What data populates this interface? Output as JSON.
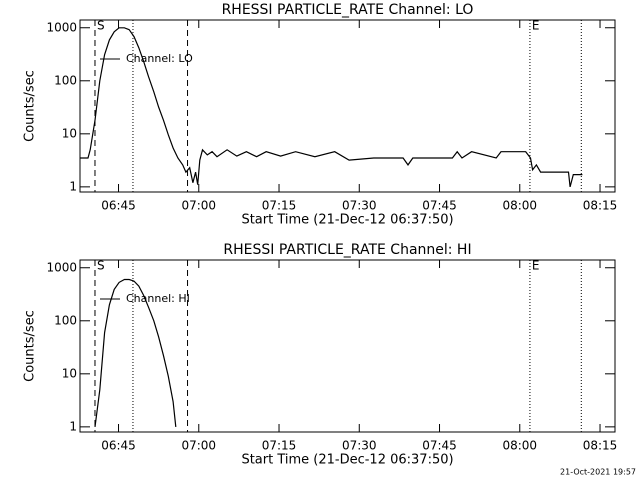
{
  "chart_data": [
    {
      "type": "line",
      "title": "RHESSI PARTICLE_RATE Channel: LO",
      "xlabel": "Start Time (21-Dec-12 06:37:50)",
      "ylabel": "Counts/sec",
      "log_y": true,
      "legend": "upper left",
      "x": [
        397.8,
        399.3,
        399.7,
        400.6,
        401.5,
        402.4,
        403.3,
        404.2,
        405.1,
        406.1,
        407.0,
        407.9,
        408.8,
        409.7,
        410.6,
        411.6,
        412.5,
        413.4,
        414.3,
        415.2,
        416.1,
        417.0,
        417.6,
        418.3,
        418.9,
        419.4,
        419.8,
        420.2,
        420.7,
        421.6,
        422.5,
        423.4,
        425.3,
        427.1,
        428.9,
        430.8,
        432.6,
        435.3,
        438.1,
        441.7,
        445.4,
        448.1,
        452.7,
        458.2,
        459.1,
        460.0,
        467.4,
        468.3,
        469.2,
        471.0,
        475.6,
        476.5,
        481.1,
        482.0,
        482.4,
        483.1,
        483.9,
        485.7,
        488.5,
        489.1,
        489.4,
        490.0,
        491.7
      ],
      "series": [
        {
          "name": "Channel: LO",
          "color": "#000000",
          "values": [
            3.5,
            3.5,
            5,
            18,
            100,
            310,
            590,
            840,
            1000,
            1000,
            920,
            680,
            420,
            230,
            120,
            62,
            32,
            18,
            9.6,
            5.4,
            3.5,
            2.6,
            1.9,
            2.3,
            1.2,
            1.9,
            1.1,
            3.2,
            5,
            4,
            4.6,
            3.7,
            5,
            3.8,
            4.6,
            3.7,
            4.6,
            3.8,
            4.6,
            3.7,
            4.6,
            3.2,
            3.5,
            3.5,
            2.6,
            3.5,
            3.5,
            4.6,
            3.5,
            4.6,
            3.5,
            4.6,
            4.6,
            3.5,
            2.1,
            2.6,
            1.9,
            1.9,
            1.9,
            1.9,
            1,
            1.7,
            1.7
          ]
        }
      ],
      "xlim": [
        397.8,
        497.8
      ],
      "ylim": [
        0.8,
        1400
      ],
      "xticks": [
        {
          "value": 405,
          "label": "06:45"
        },
        {
          "value": 420,
          "label": "07:00"
        },
        {
          "value": 435,
          "label": "07:15"
        },
        {
          "value": 450,
          "label": "07:30"
        },
        {
          "value": 465,
          "label": "07:45"
        },
        {
          "value": 480,
          "label": "08:00"
        },
        {
          "value": 495,
          "label": "08:15"
        }
      ],
      "yticks": [
        1,
        10,
        100,
        1000
      ],
      "vlines": [
        {
          "x": 400.6,
          "style": "dashed",
          "label": "S"
        },
        {
          "x": 407.7,
          "style": "dotted"
        },
        {
          "x": 417.9,
          "style": "dashed"
        },
        {
          "x": 481.9,
          "style": "dotted",
          "label": "E"
        },
        {
          "x": 491.5,
          "style": "dotted"
        }
      ]
    },
    {
      "type": "line",
      "title": "RHESSI PARTICLE_RATE Channel: HI",
      "xlabel": "Start Time (21-Dec-12 06:37:50)",
      "ylabel": "Counts/sec",
      "log_y": true,
      "legend": "upper left",
      "x": [
        400.6,
        401.5,
        402.4,
        403.3,
        404.2,
        405.1,
        406.1,
        407.0,
        407.9,
        408.8,
        409.7,
        410.6,
        411.6,
        412.5,
        413.4,
        414.3,
        415.2,
        415.7
      ],
      "series": [
        {
          "name": "Channel: HI",
          "color": "#000000",
          "values": [
            1,
            5,
            60,
            200,
            390,
            530,
            600,
            600,
            560,
            450,
            300,
            180,
            100,
            50,
            22,
            9,
            3,
            1
          ]
        }
      ],
      "xlim": [
        397.8,
        497.8
      ],
      "ylim": [
        0.8,
        1400
      ],
      "xticks": [
        {
          "value": 405,
          "label": "06:45"
        },
        {
          "value": 420,
          "label": "07:00"
        },
        {
          "value": 435,
          "label": "07:15"
        },
        {
          "value": 450,
          "label": "07:30"
        },
        {
          "value": 465,
          "label": "07:45"
        },
        {
          "value": 480,
          "label": "08:00"
        },
        {
          "value": 495,
          "label": "08:15"
        }
      ],
      "yticks": [
        1,
        10,
        100,
        1000
      ],
      "vlines": [
        {
          "x": 400.6,
          "style": "dashed",
          "label": "S"
        },
        {
          "x": 407.7,
          "style": "dotted"
        },
        {
          "x": 417.9,
          "style": "dashed"
        },
        {
          "x": 481.9,
          "style": "dotted",
          "label": "E"
        },
        {
          "x": 491.5,
          "style": "dotted"
        }
      ]
    }
  ],
  "footer": "21-Oct-2021 19:57"
}
